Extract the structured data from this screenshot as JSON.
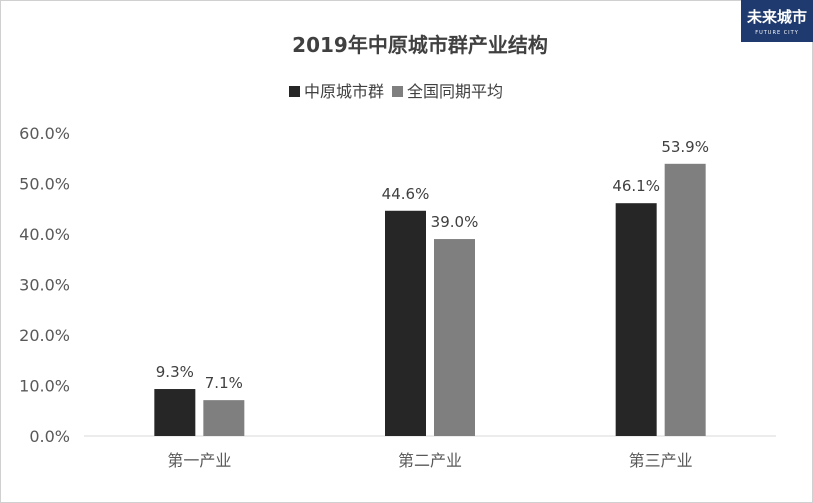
{
  "logo": {
    "text": "未来城市",
    "sub": "FUTURE CITY"
  },
  "chart_data": {
    "type": "bar",
    "title": "2019年中原城市群产业结构",
    "categories": [
      "第一产业",
      "第二产业",
      "第三产业"
    ],
    "series": [
      {
        "name": "中原城市群",
        "values": [
          9.3,
          44.6,
          46.1
        ],
        "labels": [
          "9.3%",
          "44.6%",
          "46.1%"
        ],
        "color": "#262626"
      },
      {
        "name": "全国同期平均",
        "values": [
          7.1,
          39.0,
          53.9
        ],
        "labels": [
          "7.1%",
          "39.0%",
          "53.9%"
        ],
        "color": "#7f7f7f"
      }
    ],
    "ylim": [
      0,
      60
    ],
    "yticks": [
      "0.0%",
      "10.0%",
      "20.0%",
      "30.0%",
      "40.0%",
      "50.0%",
      "60.0%"
    ],
    "xlabel": "",
    "ylabel": "",
    "grid": false,
    "legend": "top"
  }
}
